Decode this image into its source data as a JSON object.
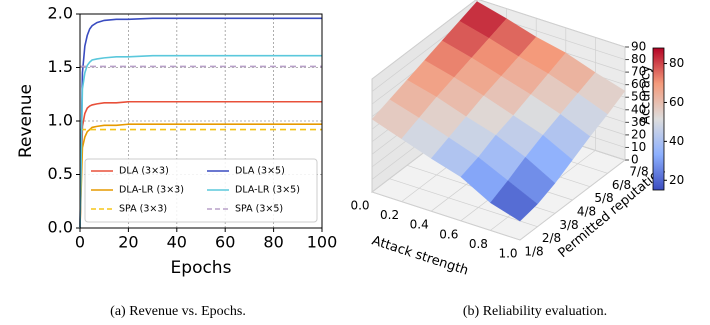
{
  "chart_data": [
    {
      "type": "line",
      "caption": "(a) Revenue vs. Epochs.",
      "xlabel": "Epochs",
      "ylabel": "Revenue",
      "x": [
        0,
        1,
        2,
        3,
        4,
        5,
        7,
        10,
        15,
        20,
        30,
        40,
        60,
        80,
        100
      ],
      "series": [
        {
          "name": "DLA (3×3)",
          "color": "#e8503a",
          "dashed": false,
          "values": [
            0,
            0.95,
            1.07,
            1.12,
            1.14,
            1.15,
            1.16,
            1.17,
            1.17,
            1.18,
            1.18,
            1.18,
            1.18,
            1.18,
            1.18
          ]
        },
        {
          "name": "DLA-LR (3×3)",
          "color": "#e69a00",
          "dashed": false,
          "values": [
            0,
            0.75,
            0.85,
            0.9,
            0.92,
            0.94,
            0.95,
            0.96,
            0.96,
            0.97,
            0.97,
            0.97,
            0.97,
            0.97,
            0.97
          ]
        },
        {
          "name": "SPA (3×3)",
          "color": "#f5c518",
          "dashed": true,
          "values": [
            0.92,
            0.92,
            0.92,
            0.92,
            0.92,
            0.92,
            0.92,
            0.92,
            0.92,
            0.92,
            0.92,
            0.92,
            0.92,
            0.92,
            0.92
          ]
        },
        {
          "name": "DLA (3×5)",
          "color": "#3a4cc0",
          "dashed": false,
          "values": [
            0,
            1.45,
            1.7,
            1.8,
            1.86,
            1.89,
            1.92,
            1.94,
            1.95,
            1.95,
            1.96,
            1.96,
            1.96,
            1.96,
            1.96
          ]
        },
        {
          "name": "DLA-LR (3×5)",
          "color": "#5bc8dc",
          "dashed": false,
          "values": [
            0,
            1.3,
            1.45,
            1.52,
            1.55,
            1.57,
            1.58,
            1.59,
            1.6,
            1.6,
            1.61,
            1.61,
            1.61,
            1.61,
            1.61
          ]
        },
        {
          "name": "SPA (3×5)",
          "color": "#b8a0c8",
          "dashed": true,
          "values": [
            1.51,
            1.51,
            1.51,
            1.51,
            1.51,
            1.51,
            1.51,
            1.51,
            1.51,
            1.51,
            1.51,
            1.51,
            1.51,
            1.51,
            1.51
          ]
        }
      ],
      "xlim": [
        0,
        100
      ],
      "xticks": [
        0,
        20,
        40,
        60,
        80,
        100
      ],
      "ylim": [
        0,
        2
      ],
      "yticks": [
        {
          "value": 0,
          "label": "0.0"
        },
        {
          "value": 0.5,
          "label": "0.5"
        },
        {
          "value": 1,
          "label": "1.0"
        },
        {
          "value": 1.5,
          "label": "1.5"
        },
        {
          "value": 2,
          "label": "2.0"
        }
      ],
      "grid": true,
      "legend": "lower center",
      "legend_columns": 2
    },
    {
      "type": "surface3d",
      "caption": "(b) Reliability evaluation.",
      "xlabel": "Attack strength",
      "ylabel": "Permitted reputation",
      "zlabel": "Accuracy",
      "x": [
        0,
        0.2,
        0.4,
        0.6,
        0.8,
        1.0
      ],
      "categories": [
        "1/8",
        "2/8",
        "3/8",
        "4/8",
        "5/8",
        "6/8",
        "7/8"
      ],
      "values": [
        [
          58,
          50,
          42,
          35,
          22,
          15
        ],
        [
          63,
          56,
          48,
          40,
          29,
          18
        ],
        [
          68,
          62,
          54,
          47,
          37,
          24
        ],
        [
          73,
          67,
          60,
          52,
          44,
          32
        ],
        [
          78,
          72,
          65,
          58,
          50,
          40
        ],
        [
          83,
          77,
          70,
          64,
          56,
          47
        ],
        [
          88,
          82,
          75,
          70,
          62,
          55
        ]
      ],
      "xlim": [
        0,
        1
      ],
      "xticks": [
        {
          "value": 0,
          "label": "0.0"
        },
        0.2,
        0.4,
        0.6,
        0.8,
        {
          "value": 1,
          "label": "1.0"
        }
      ],
      "zlim": [
        0,
        90
      ],
      "zticks": [
        0,
        10,
        20,
        30,
        40,
        50,
        60,
        70,
        80,
        90
      ],
      "colormap": "coolwarm",
      "clim": [
        15,
        88
      ],
      "cticks": [
        20,
        40,
        60,
        80
      ]
    }
  ]
}
